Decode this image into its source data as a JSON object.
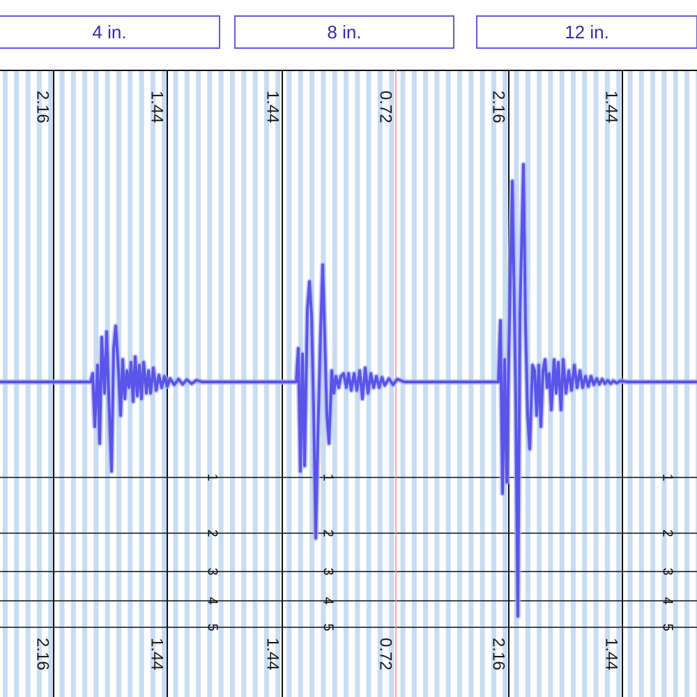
{
  "tabs": [
    {
      "label": "4 in."
    },
    {
      "label": "8 in."
    },
    {
      "label": "12 in."
    }
  ],
  "chart_data": {
    "type": "line",
    "title": "",
    "xlabel": "",
    "ylabel": "",
    "grid": true,
    "vertical_time_labels": [
      "2.16",
      "1.44",
      "1.44",
      "0.72",
      "2.16",
      "1.44"
    ],
    "horizontal_line_labels": [
      "1",
      "2",
      "3",
      "4",
      "5"
    ],
    "series": [
      {
        "values": [
          [
            0,
            0
          ],
          [
            130,
            0
          ],
          [
            133,
            0.15
          ],
          [
            136,
            -0.8
          ],
          [
            140,
            0.3
          ],
          [
            143,
            -1.1
          ],
          [
            146,
            0.8
          ],
          [
            150,
            -0.2
          ],
          [
            153,
            0.9
          ],
          [
            157,
            -0.6
          ],
          [
            160,
            -1.6
          ],
          [
            163,
            0.6
          ],
          [
            166,
            1.0
          ],
          [
            170,
            0.2
          ],
          [
            173,
            -0.6
          ],
          [
            176,
            0.4
          ],
          [
            179,
            -0.3
          ],
          [
            182,
            0.2
          ],
          [
            185,
            -0.1
          ],
          [
            188,
            0.35
          ],
          [
            191,
            -0.35
          ],
          [
            194,
            0.45
          ],
          [
            197,
            -0.25
          ],
          [
            200,
            0.3
          ],
          [
            203,
            -0.3
          ],
          [
            206,
            0.35
          ],
          [
            210,
            -0.2
          ],
          [
            213,
            0.2
          ],
          [
            216,
            -0.2
          ],
          [
            220,
            0.25
          ],
          [
            224,
            -0.15
          ],
          [
            228,
            0.12
          ],
          [
            232,
            -0.1
          ],
          [
            236,
            0.1
          ],
          [
            240,
            -0.08
          ],
          [
            244,
            0.06
          ],
          [
            250,
            -0.05
          ],
          [
            256,
            0.05
          ],
          [
            262,
            -0.04
          ],
          [
            268,
            0.04
          ],
          [
            275,
            -0.03
          ],
          [
            282,
            0.03
          ],
          [
            290,
            0
          ],
          [
            410,
            0
          ],
          [
            425,
            0
          ],
          [
            428,
            0.6
          ],
          [
            431,
            -1.6
          ],
          [
            434,
            0.5
          ],
          [
            437,
            -1.5
          ],
          [
            441,
            1.3
          ],
          [
            444,
            1.8
          ],
          [
            447,
            1.2
          ],
          [
            450,
            -0.5
          ],
          [
            453,
            -2.8
          ],
          [
            456,
            -1.0
          ],
          [
            460,
            0.9
          ],
          [
            463,
            2.1
          ],
          [
            466,
            0.8
          ],
          [
            469,
            -0.6
          ],
          [
            472,
            -1.1
          ],
          [
            476,
            0.2
          ],
          [
            479,
            -0.2
          ],
          [
            482,
            0.1
          ],
          [
            486,
            -0.1
          ],
          [
            489,
            0.1
          ],
          [
            493,
            0.15
          ],
          [
            497,
            -0.1
          ],
          [
            500,
            0.15
          ],
          [
            504,
            -0.15
          ],
          [
            508,
            0.15
          ],
          [
            512,
            -0.15
          ],
          [
            516,
            0.2
          ],
          [
            520,
            -0.3
          ],
          [
            524,
            0.25
          ],
          [
            528,
            -0.2
          ],
          [
            532,
            0.15
          ],
          [
            536,
            -0.1
          ],
          [
            540,
            0.1
          ],
          [
            544,
            -0.1
          ],
          [
            548,
            0.08
          ],
          [
            552,
            -0.06
          ],
          [
            558,
            0.06
          ],
          [
            564,
            -0.05
          ],
          [
            570,
            0.05
          ],
          [
            580,
            0
          ],
          [
            715,
            0
          ],
          [
            718,
            1.1
          ],
          [
            721,
            -2.0
          ],
          [
            724,
            0.4
          ],
          [
            727,
            -1.8
          ],
          [
            730,
            0.5
          ],
          [
            735,
            3.6
          ],
          [
            740,
            -0.3
          ],
          [
            743,
            -4.2
          ],
          [
            746,
            1.2
          ],
          [
            751,
            3.9
          ],
          [
            754,
            1.0
          ],
          [
            757,
            -0.6
          ],
          [
            760,
            -1.2
          ],
          [
            764,
            0.3
          ],
          [
            767,
            0.2
          ],
          [
            770,
            -0.6
          ],
          [
            773,
            0.3
          ],
          [
            776,
            -0.8
          ],
          [
            779,
            0.2
          ],
          [
            782,
            0.4
          ],
          [
            785,
            -0.1
          ],
          [
            788,
            0.15
          ],
          [
            791,
            -0.5
          ],
          [
            795,
            0.4
          ],
          [
            798,
            -0.2
          ],
          [
            801,
            0.35
          ],
          [
            805,
            -0.5
          ],
          [
            808,
            0.4
          ],
          [
            812,
            -0.2
          ],
          [
            816,
            0.2
          ],
          [
            820,
            -0.15
          ],
          [
            824,
            0.3
          ],
          [
            828,
            -0.1
          ],
          [
            832,
            0.2
          ],
          [
            836,
            -0.1
          ],
          [
            840,
            0.1
          ],
          [
            844,
            -0.08
          ],
          [
            848,
            0.1
          ],
          [
            852,
            -0.05
          ],
          [
            856,
            0.06
          ],
          [
            860,
            -0.04
          ],
          [
            864,
            0.05
          ],
          [
            868,
            -0.03
          ],
          [
            872,
            0.03
          ],
          [
            876,
            -0.03
          ],
          [
            880,
            0.02
          ],
          [
            885,
            -0.02
          ],
          [
            890,
            0.02
          ],
          [
            900,
            0
          ],
          [
            1000,
            0
          ]
        ]
      }
    ]
  },
  "colors": {
    "trace": "#5a54e8",
    "trace_glow": "#aab0f4",
    "stripe": "#c8dcf3",
    "major_line": "#111111",
    "red_line": "#e58f9c",
    "tab_border": "#6a56d8",
    "tab_text": "#3a2aa8"
  }
}
